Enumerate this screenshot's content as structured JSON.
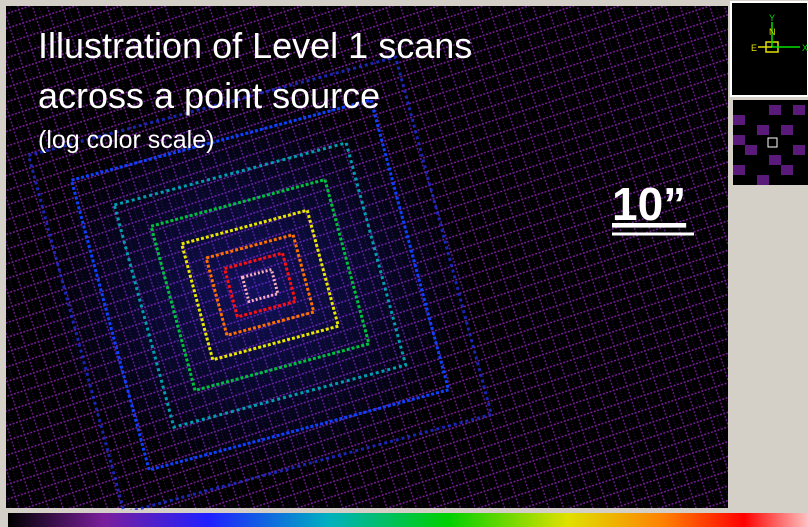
{
  "slide": {
    "title_lines": [
      "Illustration of Level 1 scans",
      "across a point source"
    ],
    "subtitle": "(log color scale)",
    "scale_label": "10”"
  },
  "panner": {
    "compass": {
      "y": "Y",
      "x": "X",
      "n": "N",
      "e": "E"
    }
  }
}
